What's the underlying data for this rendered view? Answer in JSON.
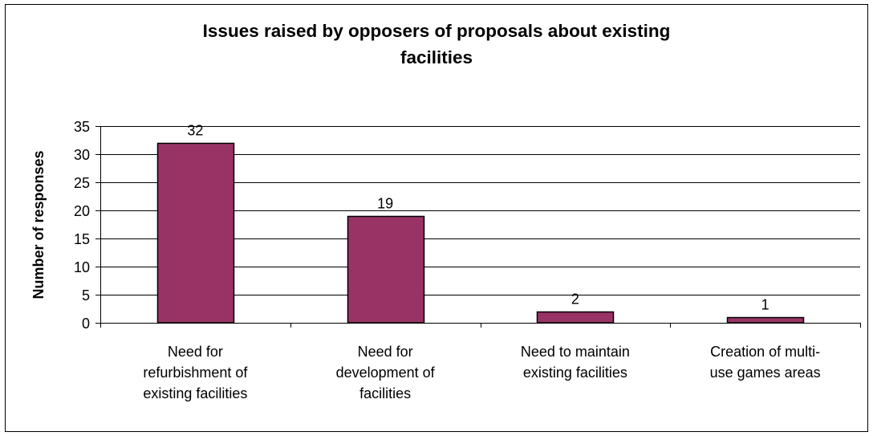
{
  "chart_data": {
    "type": "bar",
    "title_lines": [
      "Issues raised by opposers of proposals about existing",
      "facilities"
    ],
    "ylabel": "Number of responses",
    "xlabel": "",
    "ylim": [
      0,
      35
    ],
    "yticks": [
      0,
      5,
      10,
      15,
      20,
      25,
      30,
      35
    ],
    "categories": [
      [
        "Need for",
        "refurbishment of",
        "existing facilities"
      ],
      [
        "Need for",
        "development of",
        "facilities"
      ],
      [
        "Need to maintain",
        "existing facilities"
      ],
      [
        "Creation of multi-",
        "use games areas"
      ]
    ],
    "values": [
      32,
      19,
      2,
      1
    ],
    "data_labels": [
      "32",
      "19",
      "2",
      "1"
    ],
    "bar_color": "#993366",
    "grid": "horizontal",
    "legend": "none"
  }
}
